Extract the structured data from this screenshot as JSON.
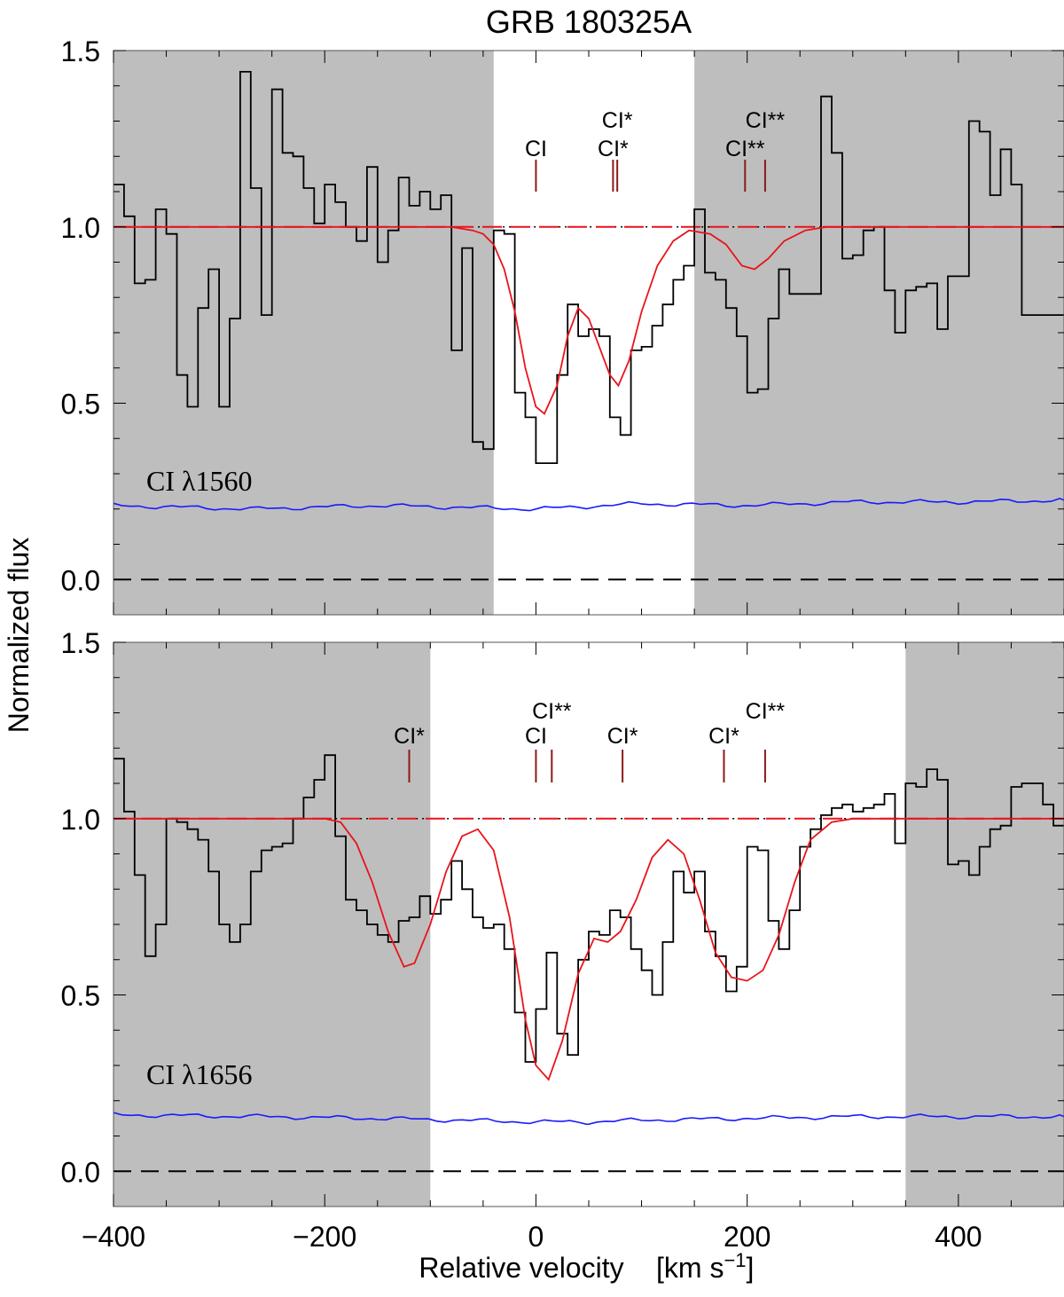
{
  "figure_title": "GRB 180325A",
  "ylabel": "Normalized flux",
  "xlabel_main": "Relative velocity",
  "xlabel_unit_prefix": "[km s",
  "xlabel_unit_exp": "−1",
  "xlabel_unit_suffix": "]",
  "colors": {
    "shade": "#bebebe",
    "data": "#000000",
    "model": "#e8141b",
    "error": "#1a1aff",
    "marker": "#8b1a1a"
  },
  "chart_data": [
    {
      "type": "line",
      "panel": "top",
      "label": "CI λ1560",
      "xlim": [
        -400,
        500
      ],
      "ylim": [
        -0.1,
        1.5
      ],
      "x_ticks": [
        "−400",
        "−200",
        "0",
        "200",
        "400"
      ],
      "y_ticks": [
        "0.0",
        "0.5",
        "1.0",
        "1.5"
      ],
      "unshaded_range": [
        -40,
        150
      ],
      "markers": [
        {
          "v": 0,
          "label": "CI",
          "tier": 1
        },
        {
          "v": 73,
          "label": "CI*",
          "tier": 1
        },
        {
          "v": 77,
          "label": "CI*",
          "tier": 2
        },
        {
          "v": 198,
          "label": "CI**",
          "tier": 1
        },
        {
          "v": 217,
          "label": "CI**",
          "tier": 2
        }
      ],
      "continuum": 1.0,
      "dotted_range": [
        -190,
        300
      ],
      "data_steps": [
        [
          -400,
          1.12
        ],
        [
          -390,
          1.03
        ],
        [
          -380,
          0.84
        ],
        [
          -370,
          0.85
        ],
        [
          -360,
          1.05
        ],
        [
          -350,
          0.98
        ],
        [
          -340,
          0.58
        ],
        [
          -330,
          0.49
        ],
        [
          -320,
          0.77
        ],
        [
          -310,
          0.88
        ],
        [
          -300,
          0.49
        ],
        [
          -290,
          0.74
        ],
        [
          -280,
          1.44
        ],
        [
          -270,
          1.11
        ],
        [
          -260,
          0.75
        ],
        [
          -250,
          1.39
        ],
        [
          -240,
          1.21
        ],
        [
          -230,
          1.2
        ],
        [
          -220,
          1.11
        ],
        [
          -210,
          1.01
        ],
        [
          -200,
          1.12
        ],
        [
          -190,
          1.07
        ],
        [
          -180,
          1.0
        ],
        [
          -170,
          0.96
        ],
        [
          -160,
          1.17
        ],
        [
          -150,
          0.9
        ],
        [
          -140,
          0.99
        ],
        [
          -130,
          1.14
        ],
        [
          -120,
          1.06
        ],
        [
          -110,
          1.1
        ],
        [
          -100,
          1.05
        ],
        [
          -90,
          1.09
        ],
        [
          -80,
          0.65
        ],
        [
          -70,
          0.94
        ],
        [
          -60,
          0.39
        ],
        [
          -50,
          0.37
        ],
        [
          -40,
          0.99
        ],
        [
          -30,
          0.98
        ],
        [
          -20,
          0.53
        ],
        [
          -10,
          0.46
        ],
        [
          0,
          0.33
        ],
        [
          10,
          0.33
        ],
        [
          20,
          0.58
        ],
        [
          30,
          0.78
        ],
        [
          40,
          0.69
        ],
        [
          50,
          0.71
        ],
        [
          60,
          0.69
        ],
        [
          70,
          0.46
        ],
        [
          80,
          0.41
        ],
        [
          90,
          0.65
        ],
        [
          100,
          0.66
        ],
        [
          110,
          0.72
        ],
        [
          120,
          0.78
        ],
        [
          130,
          0.85
        ],
        [
          140,
          0.89
        ],
        [
          150,
          1.05
        ],
        [
          160,
          0.87
        ],
        [
          170,
          0.85
        ],
        [
          180,
          0.77
        ],
        [
          190,
          0.69
        ],
        [
          200,
          0.53
        ],
        [
          210,
          0.54
        ],
        [
          220,
          0.74
        ],
        [
          230,
          0.88
        ],
        [
          240,
          0.81
        ],
        [
          250,
          0.81
        ],
        [
          260,
          0.81
        ],
        [
          270,
          1.37
        ],
        [
          280,
          1.21
        ],
        [
          290,
          0.91
        ],
        [
          300,
          0.92
        ],
        [
          310,
          0.99
        ],
        [
          320,
          1.0
        ],
        [
          330,
          0.82
        ],
        [
          340,
          0.7
        ],
        [
          350,
          0.82
        ],
        [
          360,
          0.83
        ],
        [
          370,
          0.84
        ],
        [
          380,
          0.71
        ],
        [
          390,
          0.86
        ],
        [
          400,
          0.86
        ],
        [
          410,
          1.3
        ],
        [
          420,
          1.27
        ],
        [
          430,
          1.09
        ],
        [
          440,
          1.22
        ],
        [
          450,
          1.12
        ],
        [
          460,
          0.75
        ]
      ],
      "data_end": 500,
      "model": [
        [
          -400,
          1.0
        ],
        [
          -80,
          1.0
        ],
        [
          -60,
          0.99
        ],
        [
          -50,
          0.98
        ],
        [
          -40,
          0.95
        ],
        [
          -30,
          0.88
        ],
        [
          -20,
          0.76
        ],
        [
          -10,
          0.6
        ],
        [
          0,
          0.49
        ],
        [
          8,
          0.47
        ],
        [
          20,
          0.55
        ],
        [
          30,
          0.69
        ],
        [
          40,
          0.77
        ],
        [
          50,
          0.74
        ],
        [
          60,
          0.66
        ],
        [
          70,
          0.58
        ],
        [
          78,
          0.55
        ],
        [
          88,
          0.62
        ],
        [
          100,
          0.76
        ],
        [
          115,
          0.89
        ],
        [
          130,
          0.96
        ],
        [
          145,
          0.99
        ],
        [
          165,
          0.98
        ],
        [
          180,
          0.95
        ],
        [
          195,
          0.89
        ],
        [
          207,
          0.88
        ],
        [
          220,
          0.91
        ],
        [
          235,
          0.96
        ],
        [
          255,
          0.99
        ],
        [
          275,
          1.0
        ],
        [
          500,
          1.0
        ]
      ],
      "error": [
        [
          -400,
          0.21
        ],
        [
          -270,
          0.2
        ],
        [
          -150,
          0.21
        ],
        [
          0,
          0.2
        ],
        [
          100,
          0.215
        ],
        [
          200,
          0.21
        ],
        [
          300,
          0.22
        ],
        [
          400,
          0.22
        ],
        [
          500,
          0.225
        ]
      ]
    },
    {
      "type": "line",
      "panel": "bottom",
      "label": "CI λ1656",
      "xlim": [
        -400,
        500
      ],
      "ylim": [
        -0.1,
        1.5
      ],
      "x_ticks": [
        "−400",
        "−200",
        "0",
        "200",
        "400"
      ],
      "y_ticks": [
        "0.0",
        "0.5",
        "1.0",
        "1.5"
      ],
      "unshaded_range": [
        -100,
        350
      ],
      "markers": [
        {
          "v": -120,
          "label": "CI*",
          "tier": 1
        },
        {
          "v": 0,
          "label": "CI",
          "tier": 1
        },
        {
          "v": 15,
          "label": "CI**",
          "tier": 2
        },
        {
          "v": 82,
          "label": "CI*",
          "tier": 1
        },
        {
          "v": 178,
          "label": "CI*",
          "tier": 1
        },
        {
          "v": 217,
          "label": "CI**",
          "tier": 2
        }
      ],
      "continuum": 1.0,
      "dotted_range": [
        -190,
        330
      ],
      "data_steps": [
        [
          -400,
          1.17
        ],
        [
          -390,
          1.02
        ],
        [
          -380,
          0.84
        ],
        [
          -370,
          0.61
        ],
        [
          -360,
          0.7
        ],
        [
          -350,
          1.0
        ],
        [
          -340,
          0.99
        ],
        [
          -330,
          0.97
        ],
        [
          -320,
          0.94
        ],
        [
          -310,
          0.85
        ],
        [
          -300,
          0.7
        ],
        [
          -290,
          0.65
        ],
        [
          -280,
          0.7
        ],
        [
          -270,
          0.85
        ],
        [
          -260,
          0.91
        ],
        [
          -250,
          0.92
        ],
        [
          -240,
          0.93
        ],
        [
          -230,
          1.0
        ],
        [
          -220,
          1.06
        ],
        [
          -210,
          1.11
        ],
        [
          -200,
          1.18
        ],
        [
          -190,
          0.95
        ],
        [
          -180,
          0.77
        ],
        [
          -170,
          0.74
        ],
        [
          -160,
          0.7
        ],
        [
          -150,
          0.67
        ],
        [
          -140,
          0.65
        ],
        [
          -130,
          0.71
        ],
        [
          -120,
          0.72
        ],
        [
          -110,
          0.78
        ],
        [
          -100,
          0.73
        ],
        [
          -90,
          0.77
        ],
        [
          -80,
          0.88
        ],
        [
          -70,
          0.8
        ],
        [
          -60,
          0.72
        ],
        [
          -50,
          0.69
        ],
        [
          -40,
          0.7
        ],
        [
          -30,
          0.63
        ],
        [
          -20,
          0.45
        ],
        [
          -10,
          0.31
        ],
        [
          0,
          0.46
        ],
        [
          10,
          0.62
        ],
        [
          20,
          0.39
        ],
        [
          30,
          0.33
        ],
        [
          40,
          0.6
        ],
        [
          50,
          0.68
        ],
        [
          60,
          0.67
        ],
        [
          70,
          0.74
        ],
        [
          80,
          0.72
        ],
        [
          90,
          0.63
        ],
        [
          100,
          0.57
        ],
        [
          110,
          0.5
        ],
        [
          120,
          0.65
        ],
        [
          130,
          0.85
        ],
        [
          140,
          0.79
        ],
        [
          150,
          0.85
        ],
        [
          160,
          0.68
        ],
        [
          170,
          0.61
        ],
        [
          180,
          0.51
        ],
        [
          190,
          0.58
        ],
        [
          200,
          0.92
        ],
        [
          210,
          0.91
        ],
        [
          220,
          0.71
        ],
        [
          230,
          0.63
        ],
        [
          240,
          0.74
        ],
        [
          250,
          0.92
        ],
        [
          260,
          0.97
        ],
        [
          270,
          1.01
        ],
        [
          280,
          1.03
        ],
        [
          290,
          1.04
        ],
        [
          300,
          1.02
        ],
        [
          310,
          1.03
        ],
        [
          320,
          1.04
        ],
        [
          330,
          1.07
        ],
        [
          340,
          0.93
        ],
        [
          350,
          1.1
        ],
        [
          360,
          1.09
        ],
        [
          370,
          1.14
        ],
        [
          380,
          1.11
        ],
        [
          390,
          0.87
        ],
        [
          400,
          0.88
        ],
        [
          410,
          0.84
        ],
        [
          420,
          0.92
        ],
        [
          430,
          0.97
        ],
        [
          440,
          0.98
        ],
        [
          450,
          1.09
        ],
        [
          460,
          1.1
        ],
        [
          470,
          1.1
        ],
        [
          480,
          1.04
        ],
        [
          490,
          0.98
        ]
      ],
      "data_end": 500,
      "model": [
        [
          -400,
          1.0
        ],
        [
          -200,
          1.0
        ],
        [
          -185,
          0.99
        ],
        [
          -170,
          0.93
        ],
        [
          -155,
          0.82
        ],
        [
          -140,
          0.68
        ],
        [
          -125,
          0.58
        ],
        [
          -115,
          0.59
        ],
        [
          -100,
          0.7
        ],
        [
          -85,
          0.85
        ],
        [
          -70,
          0.95
        ],
        [
          -55,
          0.97
        ],
        [
          -40,
          0.91
        ],
        [
          -25,
          0.72
        ],
        [
          -10,
          0.43
        ],
        [
          0,
          0.3
        ],
        [
          12,
          0.26
        ],
        [
          25,
          0.37
        ],
        [
          40,
          0.56
        ],
        [
          55,
          0.66
        ],
        [
          68,
          0.65
        ],
        [
          80,
          0.68
        ],
        [
          95,
          0.77
        ],
        [
          110,
          0.89
        ],
        [
          125,
          0.94
        ],
        [
          140,
          0.9
        ],
        [
          155,
          0.77
        ],
        [
          170,
          0.62
        ],
        [
          185,
          0.55
        ],
        [
          200,
          0.54
        ],
        [
          215,
          0.57
        ],
        [
          230,
          0.67
        ],
        [
          245,
          0.82
        ],
        [
          260,
          0.94
        ],
        [
          280,
          0.99
        ],
        [
          300,
          1.0
        ],
        [
          500,
          1.0
        ]
      ],
      "error": [
        [
          -400,
          0.16
        ],
        [
          -260,
          0.155
        ],
        [
          -150,
          0.15
        ],
        [
          0,
          0.14
        ],
        [
          50,
          0.14
        ],
        [
          100,
          0.145
        ],
        [
          200,
          0.15
        ],
        [
          300,
          0.155
        ],
        [
          400,
          0.155
        ],
        [
          500,
          0.155
        ]
      ]
    }
  ]
}
